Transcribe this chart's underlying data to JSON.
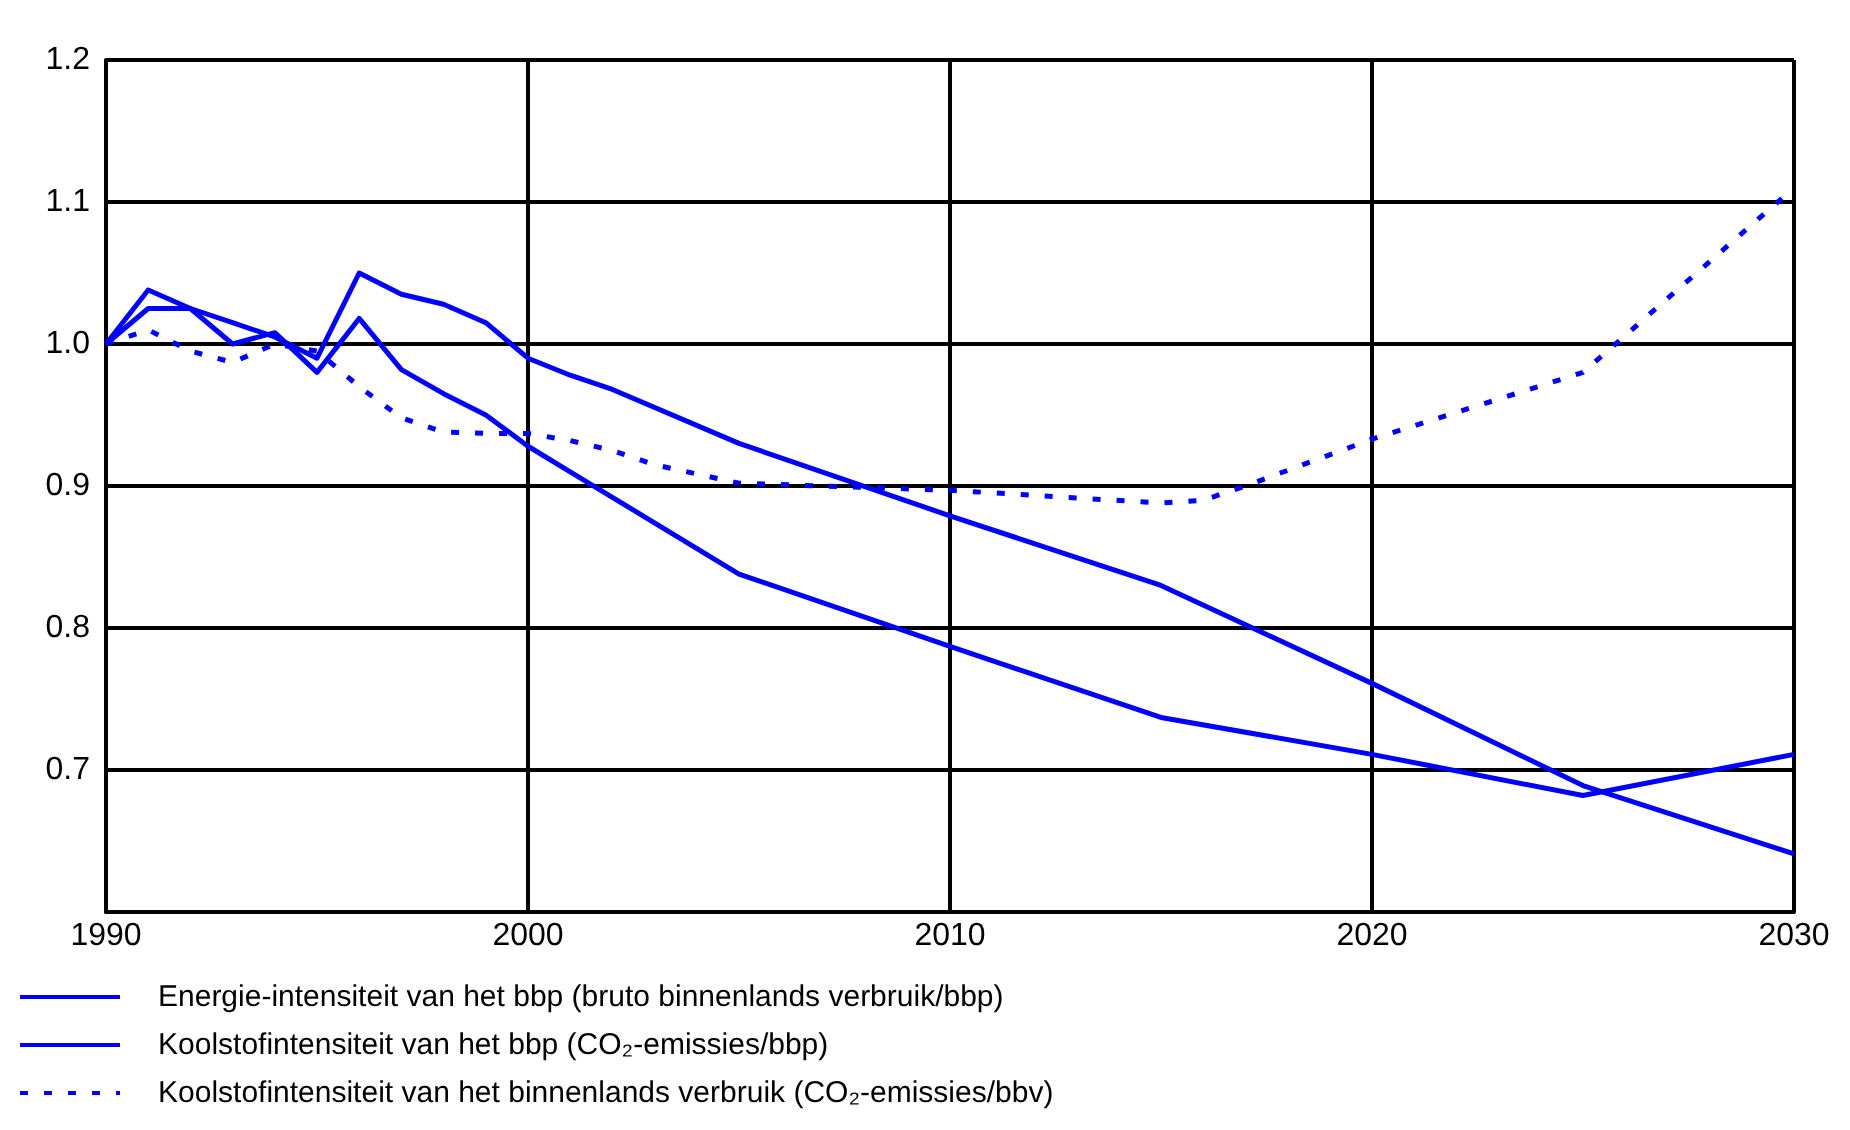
{
  "chart_data": {
    "type": "line",
    "xlim": [
      1990,
      2030
    ],
    "xticks": [
      1990,
      2000,
      2010,
      2020,
      2030
    ],
    "ylim": [
      0.6,
      1.2
    ],
    "yticks": [
      {
        "value": 0.6,
        "label": null
      },
      0.7,
      0.8,
      0.9,
      {
        "value": 1,
        "label": "1.0"
      },
      1.1,
      1.2
    ],
    "grid": true,
    "legend": "bottom",
    "marker": "none",
    "series": [
      {
        "name": "Energie-intensiteit van het bbp (bruto binnenlands verbruik/bbp)",
        "color": "#0000ff",
        "line_style": "solid",
        "x": [
          1990,
          1991,
          1992,
          1993,
          1994,
          1995,
          1996,
          1997,
          1998,
          1999,
          2000,
          2001,
          2002,
          2005,
          2010,
          2015,
          2020,
          2025,
          2030
        ],
        "values": [
          1.0,
          1.025,
          1.025,
          1.015,
          1.005,
          0.99,
          1.05,
          1.035,
          1.028,
          1.015,
          0.99,
          0.978,
          0.968,
          0.93,
          0.879,
          0.83,
          0.761,
          0.689,
          0.641
        ]
      },
      {
        "name": "Koolstofintensiteit van het bbp (CO₂-emissies/bbp)",
        "color": "#0000ff",
        "line_style": "solid",
        "x": [
          1990,
          1991,
          1992,
          1993,
          1994,
          1995,
          1996,
          1997,
          1998,
          1999,
          2000,
          2001,
          2005,
          2010,
          2015,
          2020,
          2025,
          2030
        ],
        "values": [
          1.0,
          1.038,
          1.025,
          1.0,
          1.008,
          0.98,
          1.018,
          0.982,
          0.965,
          0.95,
          0.928,
          0.91,
          0.838,
          0.787,
          0.737,
          0.711,
          0.682,
          0.711
        ]
      },
      {
        "name": "Koolstofintensiteit van het binnenlands verbruik (CO₂-emissies/bbv)",
        "color": "#0000ff",
        "line_style": "dashed",
        "x": [
          1990,
          1991,
          1992,
          1993,
          1994,
          1995,
          1996,
          1997,
          1998,
          1999,
          2000,
          2001,
          2002,
          2003,
          2005,
          2010,
          2015,
          2016,
          2017,
          2020,
          2025,
          2030
        ],
        "values": [
          1.0,
          1.01,
          0.995,
          0.987,
          1.0,
          0.995,
          0.97,
          0.948,
          0.938,
          0.937,
          0.937,
          0.932,
          0.925,
          0.915,
          0.902,
          0.897,
          0.888,
          0.89,
          0.9,
          0.933,
          0.98,
          1.11
        ]
      }
    ]
  }
}
